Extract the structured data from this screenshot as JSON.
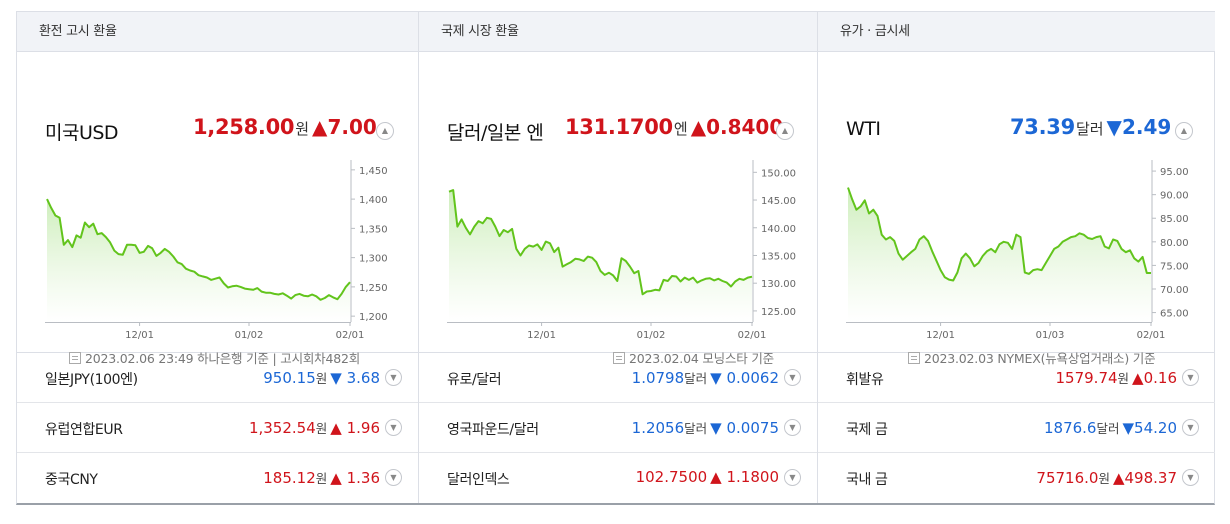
{
  "colors": {
    "up": "#d0141b",
    "down": "#1c67d5",
    "line": "#62c41c"
  },
  "panels": [
    {
      "title": "환전 고시 환율",
      "main": {
        "name": "미국USD",
        "price": "1,258.00",
        "unit": "원",
        "dir": "up",
        "change": "7.00",
        "arrow": "▲"
      },
      "footer": "2023.02.06 23:49 하나은행 기준 | 고시회차482회",
      "rows": [
        {
          "name": "일본JPY(100엔)",
          "price": "950.15",
          "unit": "원",
          "dir": "down",
          "arrow": "▼",
          "change": "3.68"
        },
        {
          "name": "유럽연합EUR",
          "price": "1,352.54",
          "unit": "원",
          "dir": "up",
          "arrow": "▲",
          "change": "1.96"
        },
        {
          "name": "중국CNY",
          "price": "185.12",
          "unit": "원",
          "dir": "up",
          "arrow": "▲",
          "change": "1.36"
        }
      ]
    },
    {
      "title": "국제 시장 환율",
      "main": {
        "name": "달러/일본 엔",
        "price": "131.1700",
        "unit": "엔",
        "dir": "up",
        "change": "0.8400",
        "arrow": "▲"
      },
      "footer": "2023.02.04 모닝스타 기준",
      "rows": [
        {
          "name": "유로/달러",
          "price": "1.0798",
          "unit": "달러",
          "dir": "down",
          "arrow": "▼",
          "change": "0.0062"
        },
        {
          "name": "영국파운드/달러",
          "price": "1.2056",
          "unit": "달러",
          "dir": "down",
          "arrow": "▼",
          "change": "0.0075"
        },
        {
          "name": "달러인덱스",
          "price": "102.7500",
          "unit": "",
          "dir": "up",
          "arrow": "▲",
          "change": "1.1800"
        }
      ]
    },
    {
      "title": "유가 · 금시세",
      "main": {
        "name": "WTI",
        "price": "73.39",
        "unit": "달러",
        "dir": "down",
        "change": "2.49",
        "arrow": "▼"
      },
      "footer": "2023.02.03 NYMEX(뉴욕상업거래소) 기준",
      "rows": [
        {
          "name": "휘발유",
          "price": "1579.74",
          "unit": "원",
          "dir": "up",
          "arrow": "▲",
          "change": "0.16"
        },
        {
          "name": "국제 금",
          "price": "1876.6",
          "unit": "달러",
          "dir": "down",
          "arrow": "▼",
          "change": "54.20"
        },
        {
          "name": "국내 금",
          "price": "75716.0",
          "unit": "원",
          "dir": "up",
          "arrow": "▲",
          "change": "498.37"
        }
      ]
    }
  ],
  "chart_data": [
    {
      "type": "line",
      "series_label": "미국USD",
      "x_ticks": [
        "12/01",
        "01/02",
        "02/01"
      ],
      "x_tick_index": [
        22,
        48,
        72
      ],
      "y_ticks": [
        "1,450",
        "1,400",
        "1,350",
        "1,300",
        "1,250",
        "1,200"
      ],
      "ylim": [
        1190,
        1460
      ],
      "values": [
        1400,
        1385,
        1372,
        1368,
        1322,
        1330,
        1318,
        1338,
        1334,
        1360,
        1352,
        1358,
        1340,
        1342,
        1335,
        1326,
        1312,
        1306,
        1305,
        1322,
        1322,
        1321,
        1308,
        1310,
        1320,
        1316,
        1303,
        1308,
        1315,
        1310,
        1302,
        1292,
        1289,
        1281,
        1278,
        1276,
        1270,
        1268,
        1266,
        1262,
        1264,
        1266,
        1256,
        1249,
        1251,
        1252,
        1250,
        1247,
        1246,
        1245,
        1248,
        1242,
        1240,
        1240,
        1238,
        1237,
        1239,
        1235,
        1230,
        1236,
        1238,
        1235,
        1234,
        1237,
        1234,
        1228,
        1231,
        1236,
        1232,
        1229,
        1238,
        1250,
        1258
      ]
    },
    {
      "type": "line",
      "series_label": "달러/일본 엔",
      "x_ticks": [
        "12/01",
        "01/02",
        "02/01"
      ],
      "x_tick_index": [
        22,
        48,
        72
      ],
      "y_ticks": [
        "150.00",
        "145.00",
        "140.00",
        "135.00",
        "130.00",
        "125.00"
      ],
      "ylim": [
        123,
        151.5
      ],
      "values": [
        146.5,
        146.8,
        140.2,
        141.5,
        140.0,
        138.8,
        140.2,
        141.2,
        140.8,
        141.8,
        141.6,
        140.2,
        138.5,
        139.6,
        139.2,
        139.8,
        136.2,
        135.0,
        136.2,
        136.8,
        136.6,
        137.0,
        136.0,
        137.5,
        137.2,
        135.6,
        136.4,
        133.0,
        133.4,
        133.8,
        134.4,
        134.3,
        134.0,
        134.8,
        134.6,
        133.8,
        132.2,
        131.5,
        131.9,
        131.4,
        130.4,
        134.5,
        134.0,
        133.0,
        131.8,
        132.2,
        128.0,
        128.5,
        128.6,
        128.8,
        128.7,
        130.6,
        130.4,
        131.3,
        131.2,
        130.3,
        131.0,
        130.6,
        131.0,
        130.1,
        130.5,
        130.8,
        130.9,
        130.5,
        130.8,
        130.4,
        130.1,
        129.4,
        130.3,
        130.8,
        130.6,
        131.0,
        131.17
      ]
    },
    {
      "type": "line",
      "series_label": "WTI",
      "x_ticks": [
        "12/01",
        "01/03",
        "02/01"
      ],
      "x_tick_index": [
        22,
        48,
        72
      ],
      "y_ticks": [
        "95.00",
        "90.00",
        "85.00",
        "80.00",
        "75.00",
        "70.00",
        "65.00"
      ],
      "ylim": [
        63,
        96.5
      ],
      "values": [
        91.5,
        89.0,
        86.8,
        87.5,
        88.8,
        86.0,
        86.8,
        85.5,
        81.5,
        80.5,
        81.0,
        80.2,
        77.5,
        76.2,
        77.0,
        77.8,
        78.5,
        80.5,
        81.2,
        80.2,
        78.0,
        76.0,
        74.0,
        72.5,
        72.0,
        71.8,
        73.5,
        76.5,
        77.5,
        76.5,
        74.8,
        75.5,
        77.0,
        78.0,
        78.5,
        77.8,
        79.5,
        80.0,
        79.8,
        78.5,
        81.5,
        81.0,
        73.5,
        73.2,
        74.0,
        74.2,
        74.0,
        75.5,
        77.0,
        78.5,
        79.0,
        80.0,
        80.5,
        81.0,
        81.2,
        81.8,
        81.5,
        80.8,
        80.6,
        81.0,
        81.2,
        79.0,
        78.6,
        80.5,
        80.2,
        78.5,
        77.8,
        78.2,
        76.5,
        75.8,
        76.8,
        73.39,
        73.39
      ]
    }
  ]
}
